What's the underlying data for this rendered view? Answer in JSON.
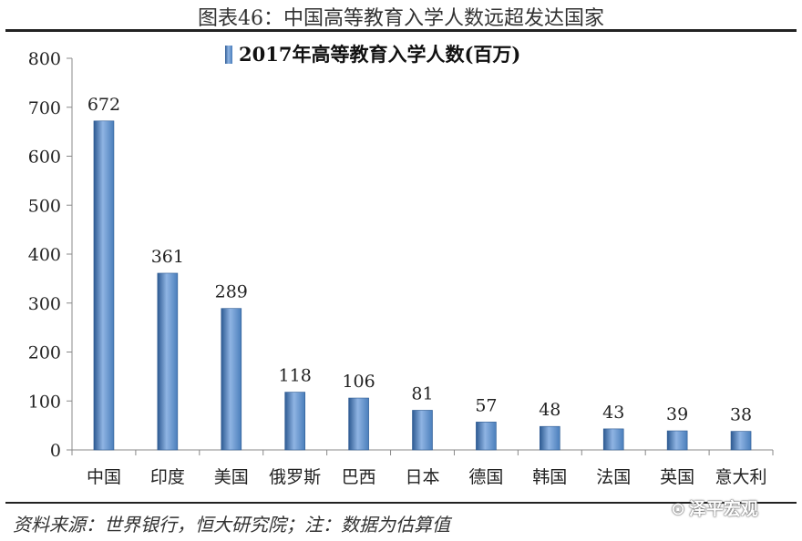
{
  "figure_title": "图表46：中国高等教育入学人数远超发达国家",
  "source_note": "资料来源：世界银行，恒大研究院；注：数据为估算值",
  "watermark": {
    "icon": "wechat-icon",
    "text": "泽平宏观"
  },
  "colors": {
    "bar": "#4a7ebb",
    "bar_light": "#8fb4e3",
    "bar_dark": "#2d5a92",
    "axis": "#888888"
  },
  "chart_data": {
    "type": "bar",
    "title": "",
    "xlabel": "",
    "ylabel": "",
    "ylim": [
      0,
      800
    ],
    "yticks": [
      0,
      100,
      200,
      300,
      400,
      500,
      600,
      700,
      800
    ],
    "categories": [
      "中国",
      "印度",
      "美国",
      "俄罗斯",
      "巴西",
      "日本",
      "德国",
      "韩国",
      "法国",
      "英国",
      "意大利"
    ],
    "series": [
      {
        "name": "2017年高等教育入学人数(百万)",
        "values": [
          672,
          361,
          289,
          118,
          106,
          81,
          57,
          48,
          43,
          39,
          38
        ]
      }
    ],
    "data_labels": true,
    "legend": "top-center",
    "grid": false
  }
}
